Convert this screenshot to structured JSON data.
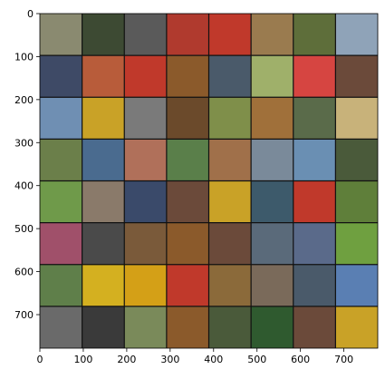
{
  "axes": {
    "x_ticks": [
      "0",
      "100",
      "200",
      "300",
      "400",
      "500",
      "600",
      "700"
    ],
    "y_ticks": [
      "0",
      "100",
      "200",
      "300",
      "400",
      "500",
      "600",
      "700"
    ]
  },
  "image": {
    "grid_rows": 8,
    "grid_cols": 8,
    "tiles": [
      [
        "#8a8a70",
        "#3d4a33",
        "#5a5a5a",
        "#b03a2e",
        "#c0392b",
        "#9a7b4f",
        "#5e6e3a",
        "#8fa3b8"
      ],
      [
        "#3e4a66",
        "#b85c3a",
        "#c0392b",
        "#8b5a2b",
        "#4a5a6a",
        "#9fb06a",
        "#d64541",
        "#6b4a3a"
      ],
      [
        "#6f8fb3",
        "#c9a227",
        "#7a7a7a",
        "#6b4a2b",
        "#7f8f4a",
        "#a0703a",
        "#5a6b4a",
        "#c8b27a"
      ],
      [
        "#6b7f4a",
        "#4a6b8f",
        "#b0705a",
        "#5a7f4a",
        "#a0704a",
        "#7a8a9a",
        "#6a8fb3",
        "#4a5a3a"
      ],
      [
        "#6f9a4a",
        "#8a7a6a",
        "#3a4a6a",
        "#6b4a3a",
        "#c9a227",
        "#3d5a6b",
        "#c0392b",
        "#5f7f3a"
      ],
      [
        "#a0506a",
        "#4a4a4a",
        "#7a5a3a",
        "#8b5a2b",
        "#6b4a3a",
        "#5a6a7a",
        "#5a6a8a",
        "#6fa040"
      ],
      [
        "#5f7f4a",
        "#d4b020",
        "#d4a017",
        "#c0392b",
        "#8b6a3a",
        "#7a6a5a",
        "#4a5a6a",
        "#5a7fb3"
      ],
      [
        "#6a6a6a",
        "#3a3a3a",
        "#7a8a5a",
        "#8b5a2b",
        "#4a5a3a",
        "#2f5a2f",
        "#6b4a3a",
        "#c9a227"
      ]
    ]
  }
}
